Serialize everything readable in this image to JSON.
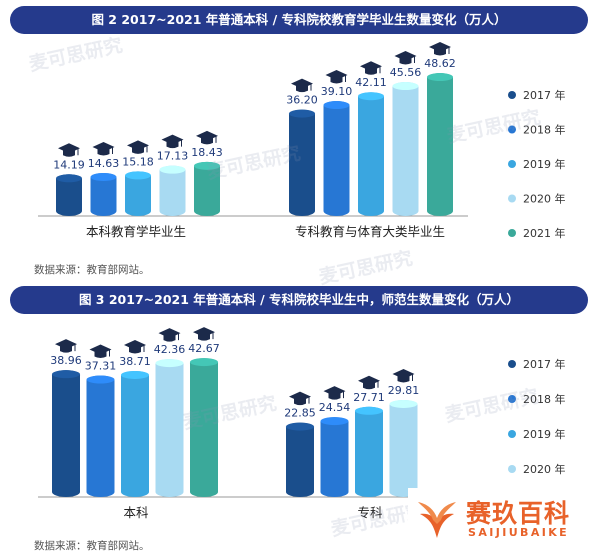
{
  "watermark_text": "麦可思研究",
  "brand": {
    "name_cn": "赛玖百科",
    "name_en": "SAIJIUBAIKE"
  },
  "chart_data": [
    {
      "type": "bar",
      "title": "图 2  2017~2021 年普通本科 / 专科院校教育学毕业生数量变化（万人）",
      "categories": [
        "本科教育学毕业生",
        "专科教育与体育大类毕业生"
      ],
      "series": [
        {
          "name": "2017 年",
          "values": [
            14.19,
            36.2
          ]
        },
        {
          "name": "2018 年",
          "values": [
            14.63,
            39.1
          ]
        },
        {
          "name": "2019 年",
          "values": [
            15.18,
            42.11
          ]
        },
        {
          "name": "2020 年",
          "values": [
            17.13,
            45.56
          ]
        },
        {
          "name": "2021 年",
          "values": [
            18.43,
            48.62
          ]
        }
      ],
      "value_labels": [
        [
          "14.19",
          "14.63",
          "15.18",
          "17.13",
          "18.43"
        ],
        [
          "36.20",
          "39.10",
          "42.11",
          "45.56",
          "48.62"
        ]
      ],
      "ylim": [
        0,
        50
      ],
      "legend": "right",
      "grid": false,
      "source": "数据来源：教育部网站。"
    },
    {
      "type": "bar",
      "title": "图 3  2017~2021 年普通本科 / 专科院校毕业生中，师范生数量变化（万人）",
      "categories": [
        "本科",
        "专科"
      ],
      "series": [
        {
          "name": "2017 年",
          "values": [
            38.96,
            22.85
          ]
        },
        {
          "name": "2018 年",
          "values": [
            37.31,
            24.54
          ]
        },
        {
          "name": "2019 年",
          "values": [
            38.71,
            27.71
          ]
        },
        {
          "name": "2020 年",
          "values": [
            42.36,
            29.81
          ]
        },
        {
          "name": "2021 年",
          "values": [
            42.67,
            null
          ]
        }
      ],
      "value_labels": [
        [
          "38.96",
          "37.31",
          "38.71",
          "42.36",
          "42.67"
        ],
        [
          "22.85",
          "24.54",
          "27.71",
          "29.81"
        ]
      ],
      "ylim": [
        0,
        43
      ],
      "legend": "right",
      "grid": false,
      "source": "数据来源：教育部网站。"
    }
  ],
  "colors": [
    "#1a4e8c",
    "#2777d4",
    "#3aa6e0",
    "#a8daf2",
    "#3aa99a"
  ]
}
